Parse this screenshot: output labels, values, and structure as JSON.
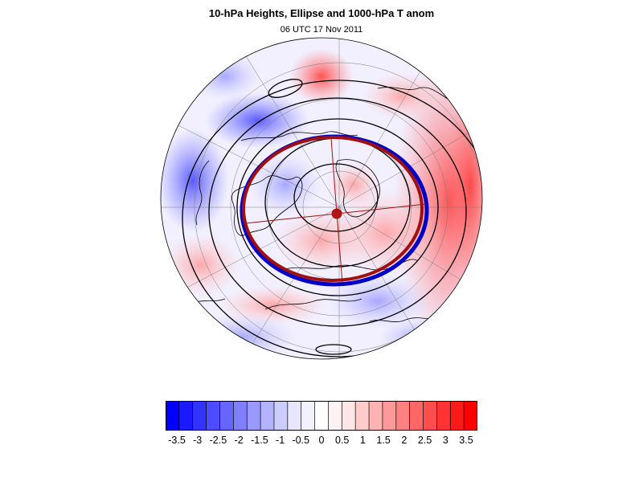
{
  "header": {
    "title": "10-hPa Heights, Ellipse and 1000-hPa T anom",
    "subtitle": "06 UTC 17 Nov 2011"
  },
  "colorbar": {
    "labels": [
      "-3.5",
      "-3",
      "-2.5",
      "-2",
      "-1.5",
      "-1",
      "-0.5",
      "0",
      "0.5",
      "1",
      "1.5",
      "2",
      "2.5",
      "3",
      "3.5"
    ],
    "colors": [
      "#0000ff",
      "#1a1aff",
      "#3333ff",
      "#4d4dff",
      "#6666ff",
      "#8080ff",
      "#9999ff",
      "#b3b3ff",
      "#ccccff",
      "#e6e6ff",
      "#f2f2ff",
      "#ffffff",
      "#fff2f2",
      "#ffe6e6",
      "#ffcccc",
      "#ffb3b3",
      "#ff9999",
      "#ff8080",
      "#ff6666",
      "#ff4d4d",
      "#ff3333",
      "#ff1a1a",
      "#ff0000"
    ]
  },
  "colors": {
    "ellipse_red": "#a01010",
    "ellipse_blue": "#0000c8",
    "contour": "#000000",
    "center_marker": "#b01414"
  }
}
